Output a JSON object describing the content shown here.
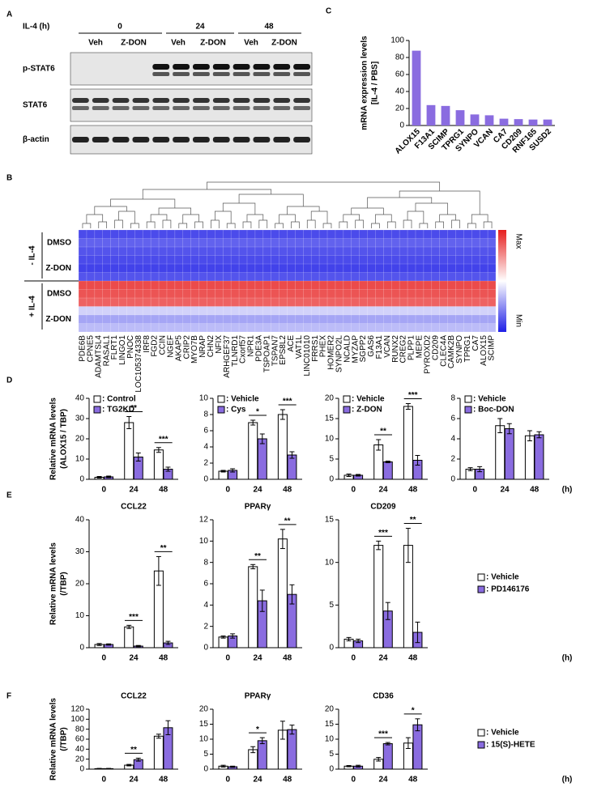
{
  "panel_labels": [
    "A",
    "B",
    "C",
    "D",
    "E",
    "F"
  ],
  "blot": {
    "treatment_label": "IL-4 (h)",
    "timepoints": [
      "0",
      "24",
      "48"
    ],
    "lanes": [
      "Veh",
      "Z-DON",
      "Veh",
      "Z-DON",
      "Veh",
      "Z-DON"
    ],
    "rows": [
      "p-STAT6",
      "STAT6",
      "β-actin"
    ]
  },
  "heatmap": {
    "groups": [
      "- IL-4",
      "+ IL-4"
    ],
    "rows": [
      "DMSO",
      "Z-DON",
      "DMSO",
      "Z-DON"
    ],
    "genes": [
      "PDE6B",
      "CPNE5",
      "ADAMTSL4",
      "RASAL1",
      "FLRT1",
      "LINGO1",
      "PNOC",
      "LOC105374338",
      "IRF8",
      "FGD2",
      "CCIN",
      "NGEF",
      "AKAP5",
      "CRIP2",
      "MYO7B",
      "NRAP",
      "CHN2",
      "NFIX",
      "ARHGEF37",
      "TLNRD1",
      "Cxorf57",
      "NPR1",
      "PDE3A",
      "TSPOAP1",
      "TSPAN7",
      "EPS8L2",
      "ACE",
      "VAT1L",
      "LINC01010",
      "FRRS1",
      "PHEX",
      "HOMER2",
      "SYNPO2L",
      "NCALD",
      "MYZAP",
      "SGPP2",
      "GAS6",
      "F13A1",
      "VCAN",
      "RUNX2",
      "CREG2",
      "PLPP1",
      "MEPE",
      "PYROXD2",
      "CD209",
      "CLEC4A",
      "CAMK2B",
      "SYNPO",
      "TPRG1",
      "CA7",
      "ALOX15",
      "SCIMP"
    ],
    "values": [
      0.1,
      0.15,
      0.12,
      0.1,
      0.08,
      0.12,
      0.9,
      0.88,
      0.85,
      0.4,
      0.3,
      0.35
    ],
    "scale": {
      "max": "Max",
      "min": "Min"
    }
  },
  "groups": {
    "D": {
      "ylabel": [
        "Relative mRNA levels",
        "(ALOX15 / TBP)"
      ],
      "x_unit": "(h)"
    },
    "E": {
      "ylabel": [
        "Relative mRNA levels",
        "(/TBP)"
      ],
      "x_unit": "(h)",
      "series": [
        {
          "name": ": Vehicle",
          "color": "#ffffff"
        },
        {
          "name": ": PD146176",
          "color": "#8a6ce0"
        }
      ]
    },
    "F": {
      "ylabel": [
        "Relative mRNA levels",
        "(/TBP)"
      ],
      "x_unit": "(h)",
      "series": [
        {
          "name": ": Vehicle",
          "color": "#ffffff"
        },
        {
          "name": ": 15(S)-HETE",
          "color": "#8a6ce0"
        }
      ]
    }
  },
  "chart_data": [
    {
      "type": "bar",
      "ylabel": [
        "mRNA expression levels",
        "[IL-4 / PBS]"
      ],
      "categories": [
        "ALOX15",
        "F13A1",
        "SCIMP",
        "TPRG1",
        "SYNPO",
        "VCAN",
        "CA7",
        "CD209",
        "RNF165",
        "SUSD2"
      ],
      "values": [
        88,
        24,
        23,
        18,
        13,
        12,
        8,
        7.5,
        7,
        7
      ],
      "color": "#8a6ce0",
      "ylim": [
        0,
        100
      ],
      "yticks": [
        0,
        20,
        40,
        60,
        80,
        100
      ]
    },
    {
      "type": "grouped_bar",
      "categories": [
        "0",
        "24",
        "48"
      ],
      "series": [
        {
          "name": ": Control",
          "color": "#ffffff",
          "values": [
            1,
            28,
            14.5
          ],
          "errors": [
            0.4,
            3,
            1.2
          ]
        },
        {
          "name": ": TG2KD",
          "color": "#8a6ce0",
          "values": [
            1.2,
            11,
            5
          ],
          "errors": [
            0.4,
            2,
            1
          ]
        }
      ],
      "ylim": [
        0,
        40
      ],
      "yticks": [
        0,
        10,
        20,
        30,
        40
      ],
      "annotations": [
        {
          "at": "24",
          "text": "**"
        },
        {
          "at": "48",
          "text": "***"
        }
      ]
    },
    {
      "type": "grouped_bar",
      "categories": [
        "0",
        "24",
        "48"
      ],
      "series": [
        {
          "name": ": Vehicle",
          "color": "#ffffff",
          "values": [
            1,
            7,
            8
          ],
          "errors": [
            0.1,
            0.3,
            0.6
          ]
        },
        {
          "name": ": Cys",
          "color": "#8a6ce0",
          "values": [
            1.1,
            5,
            3
          ],
          "errors": [
            0.2,
            0.6,
            0.4
          ]
        }
      ],
      "ylim": [
        0,
        10
      ],
      "yticks": [
        0,
        2,
        4,
        6,
        8,
        10
      ],
      "annotations": [
        {
          "at": "24",
          "text": "*"
        },
        {
          "at": "48",
          "text": "***"
        }
      ]
    },
    {
      "type": "grouped_bar",
      "categories": [
        "0",
        "24",
        "48"
      ],
      "series": [
        {
          "name": ": Vehicle",
          "color": "#ffffff",
          "values": [
            1,
            8.5,
            18
          ],
          "errors": [
            0.3,
            1.3,
            0.7
          ]
        },
        {
          "name": ": Z-DON",
          "color": "#8a6ce0",
          "values": [
            1,
            4.3,
            4.7
          ],
          "errors": [
            0.2,
            0.2,
            1.2
          ]
        }
      ],
      "ylim": [
        0,
        20
      ],
      "yticks": [
        0,
        5,
        10,
        15,
        20
      ],
      "annotations": [
        {
          "at": "24",
          "text": "**"
        },
        {
          "at": "48",
          "text": "***"
        }
      ]
    },
    {
      "type": "grouped_bar",
      "categories": [
        "0",
        "24",
        "48"
      ],
      "series": [
        {
          "name": ": Vehicle",
          "color": "#ffffff",
          "values": [
            1,
            5.3,
            4.3
          ],
          "errors": [
            0.15,
            0.7,
            0.5
          ]
        },
        {
          "name": ": Boc-DON",
          "color": "#8a6ce0",
          "values": [
            1,
            5,
            4.4
          ],
          "errors": [
            0.25,
            0.5,
            0.3
          ]
        }
      ],
      "ylim": [
        0,
        8
      ],
      "yticks": [
        0,
        2,
        4,
        6,
        8
      ]
    },
    {
      "type": "grouped_bar",
      "title": "CCL22",
      "categories": [
        "0",
        "24",
        "48"
      ],
      "series": [
        {
          "values": [
            1,
            6.5,
            24
          ],
          "errors": [
            0.3,
            0.5,
            4.5
          ]
        },
        {
          "values": [
            1,
            0.5,
            1.5
          ],
          "errors": [
            0.2,
            0.2,
            0.5
          ]
        }
      ],
      "ylim": [
        0,
        40
      ],
      "yticks": [
        0,
        10,
        20,
        30,
        40
      ],
      "annotations": [
        {
          "at": "24",
          "text": "***"
        },
        {
          "at": "48",
          "text": "**"
        }
      ]
    },
    {
      "type": "grouped_bar",
      "title": "PPARγ",
      "categories": [
        "0",
        "24",
        "48"
      ],
      "series": [
        {
          "values": [
            1,
            7.6,
            10.2
          ],
          "errors": [
            0.1,
            0.2,
            0.9
          ]
        },
        {
          "values": [
            1.1,
            4.4,
            5
          ],
          "errors": [
            0.2,
            1,
            0.9
          ]
        }
      ],
      "ylim": [
        0,
        12
      ],
      "yticks": [
        0,
        2,
        4,
        6,
        8,
        10,
        12
      ],
      "annotations": [
        {
          "at": "24",
          "text": "**"
        },
        {
          "at": "48",
          "text": "**"
        }
      ]
    },
    {
      "type": "grouped_bar",
      "title": "CD209",
      "categories": [
        "0",
        "24",
        "48"
      ],
      "series": [
        {
          "values": [
            1,
            12,
            12
          ],
          "errors": [
            0.2,
            0.5,
            2
          ]
        },
        {
          "values": [
            0.8,
            4.3,
            1.8
          ],
          "errors": [
            0.2,
            1,
            1.2
          ]
        }
      ],
      "ylim": [
        0,
        15
      ],
      "yticks": [
        0,
        5,
        10,
        15
      ],
      "annotations": [
        {
          "at": "24",
          "text": "***"
        },
        {
          "at": "48",
          "text": "**"
        }
      ]
    },
    {
      "type": "grouped_bar",
      "title": "CCL22",
      "categories": [
        "0",
        "24",
        "48"
      ],
      "series": [
        {
          "values": [
            1,
            8,
            66
          ],
          "errors": [
            0.5,
            1.5,
            4
          ]
        },
        {
          "values": [
            1,
            19,
            83
          ],
          "errors": [
            0.5,
            3,
            14
          ]
        }
      ],
      "ylim": [
        0,
        120
      ],
      "yticks": [
        0,
        20,
        40,
        60,
        80,
        100,
        120
      ],
      "annotations": [
        {
          "at": "24",
          "text": "**"
        }
      ]
    },
    {
      "type": "grouped_bar",
      "title": "PPARγ",
      "categories": [
        "0",
        "24",
        "48"
      ],
      "series": [
        {
          "values": [
            1,
            6.5,
            13
          ],
          "errors": [
            0.3,
            1,
            3
          ]
        },
        {
          "values": [
            0.8,
            9.5,
            13.2
          ],
          "errors": [
            0.2,
            1,
            1.5
          ]
        }
      ],
      "ylim": [
        0,
        20
      ],
      "yticks": [
        0,
        5,
        10,
        15,
        20
      ],
      "annotations": [
        {
          "at": "24",
          "text": "*"
        }
      ]
    },
    {
      "type": "grouped_bar",
      "title": "CD36",
      "categories": [
        "0",
        "24",
        "48"
      ],
      "series": [
        {
          "values": [
            1,
            3.3,
            8.7
          ],
          "errors": [
            0.2,
            0.6,
            1.8
          ]
        },
        {
          "values": [
            1,
            8.5,
            14.8
          ],
          "errors": [
            0.3,
            0.4,
            2
          ]
        }
      ],
      "ylim": [
        0,
        20
      ],
      "yticks": [
        0,
        5,
        10,
        15,
        20
      ],
      "annotations": [
        {
          "at": "24",
          "text": "***"
        },
        {
          "at": "48",
          "text": "*"
        }
      ]
    }
  ]
}
